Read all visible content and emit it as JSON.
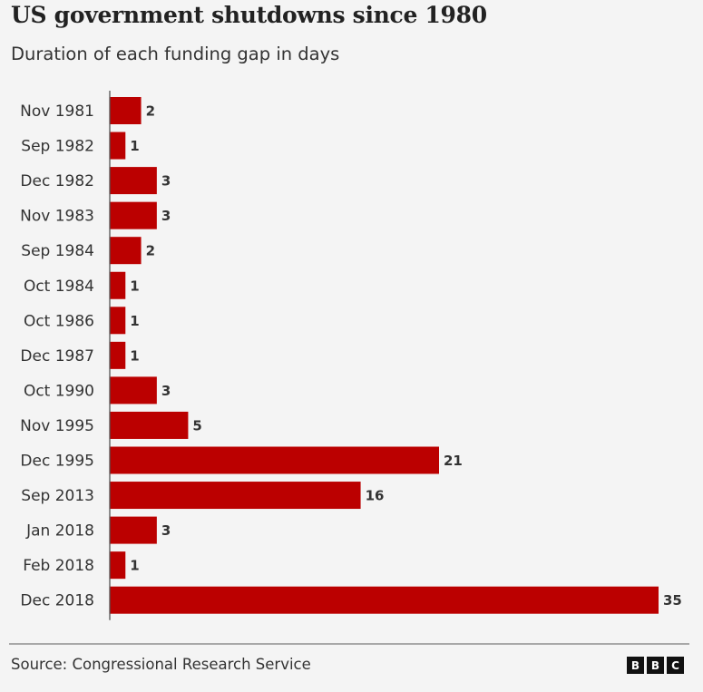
{
  "header": {
    "title": "US government shutdowns since 1980",
    "subtitle": "Duration of each funding gap in days"
  },
  "footer": {
    "source": "Source: Congressional Research Service",
    "logo_letters": [
      "B",
      "B",
      "C"
    ]
  },
  "colors": {
    "bar": "#bb0000",
    "axis": "#555555",
    "background": "#f4f4f4"
  },
  "chart_data": {
    "type": "bar",
    "orientation": "horizontal",
    "title": "US government shutdowns since 1980",
    "subtitle": "Duration of each funding gap in days",
    "xlabel": "",
    "ylabel": "",
    "xlim": [
      0,
      35
    ],
    "grid": false,
    "legend": "none",
    "categories": [
      "Nov 1981",
      "Sep 1982",
      "Dec 1982",
      "Nov 1983",
      "Sep 1984",
      "Oct 1984",
      "Oct 1986",
      "Dec 1987",
      "Oct 1990",
      "Nov 1995",
      "Dec 1995",
      "Sep 2013",
      "Jan 2018",
      "Feb 2018",
      "Dec 2018"
    ],
    "values": [
      2,
      1,
      3,
      3,
      2,
      1,
      1,
      1,
      3,
      5,
      21,
      16,
      3,
      1,
      35
    ],
    "data_labels": [
      "2",
      "1",
      "3",
      "3",
      "2",
      "1",
      "1",
      "1",
      "3",
      "5",
      "21",
      "16",
      "3",
      "1",
      "35"
    ],
    "source": "Source: Congressional Research Service"
  }
}
